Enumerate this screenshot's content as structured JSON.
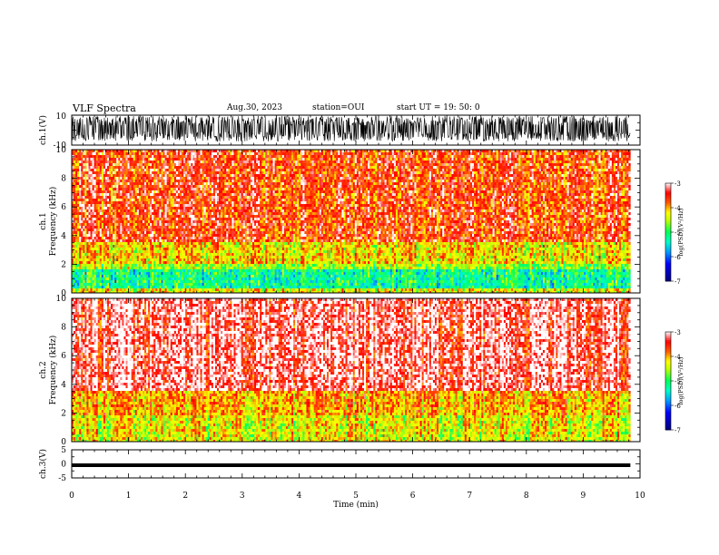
{
  "header": {
    "title": "VLF Spectra",
    "date": "Aug.30, 2023",
    "station": "station=OUI",
    "start": "start UT = 19: 50: 0"
  },
  "chart_data": [
    {
      "type": "line",
      "name": "ch1-waveform",
      "ylabel": "ch.1(V)",
      "ylim": [
        -10,
        10
      ],
      "yticks": [
        "10",
        "-10"
      ],
      "xlim": [
        0,
        10
      ],
      "waveform": "dense noise, roughly between -6 V and 8 V across 0–9.8 min"
    },
    {
      "type": "heatmap",
      "name": "ch1-spectrogram",
      "ylabel": "ch.1 Frequency (kHz)",
      "ylim": [
        0,
        10
      ],
      "yticks": [
        "0",
        "2",
        "4",
        "6",
        "8",
        "10"
      ],
      "xlim": [
        0,
        9.8
      ],
      "bands": [
        {
          "from": 0,
          "to": 0.4,
          "level": -4.3
        },
        {
          "from": 0.4,
          "to": 1.7,
          "level": -5.2
        },
        {
          "from": 1.7,
          "to": 2.0,
          "level": -4.6
        },
        {
          "from": 2.0,
          "to": 3.5,
          "level": -4.2
        },
        {
          "from": 3.5,
          "to": 10,
          "level": -3.6
        }
      ]
    },
    {
      "type": "heatmap",
      "name": "ch2-spectrogram",
      "ylabel": "ch.2 Frequency (kHz)",
      "ylim": [
        0,
        10
      ],
      "yticks": [
        "0",
        "2",
        "4",
        "6",
        "8",
        "10"
      ],
      "xlim": [
        0,
        9.8
      ],
      "bands": [
        {
          "from": 0,
          "to": 1.8,
          "level": -4.3
        },
        {
          "from": 1.8,
          "to": 2.0,
          "level": -4.0
        },
        {
          "from": 2.0,
          "to": 3.5,
          "level": -4.0
        },
        {
          "from": 3.5,
          "to": 10,
          "level": -3.2
        }
      ]
    },
    {
      "type": "line",
      "name": "ch3-waveform",
      "ylabel": "ch.3(V)",
      "ylim": [
        -5,
        5
      ],
      "yticks": [
        "5",
        "0",
        "-5"
      ],
      "xlim": [
        0,
        10
      ],
      "constant_value": -0.5
    }
  ],
  "xaxis": {
    "label": "Time (min)",
    "ticks": [
      "0",
      "1",
      "2",
      "3",
      "4",
      "5",
      "6",
      "7",
      "8",
      "9",
      "10"
    ]
  },
  "colorbars": [
    {
      "label": "log(PSD)(V²/Hz)",
      "ticks": [
        "-3",
        "-4",
        "-5",
        "-6",
        "-7"
      ],
      "range": [
        -7,
        -3
      ]
    },
    {
      "label": "log(PSD)(V²/Hz)",
      "ticks": [
        "-3",
        "-4",
        "-5",
        "-6",
        "-7"
      ],
      "range": [
        -7,
        -3
      ]
    }
  ],
  "colors": {
    "red": "#ff0000",
    "yellow": "#ffff00",
    "green": "#00ff80",
    "cyan": "#00e0ff",
    "blue": "#0000ff",
    "black": "#000000"
  }
}
